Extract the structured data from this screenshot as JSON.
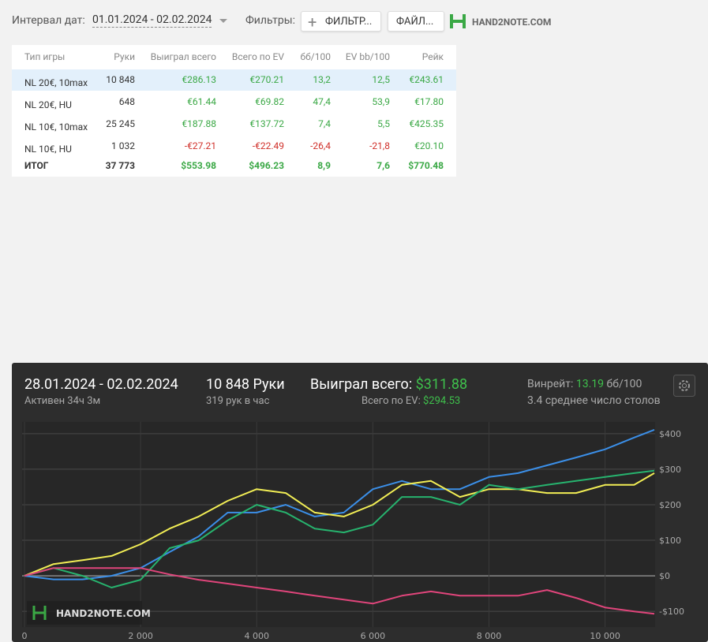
{
  "toolbar": {
    "date_label": "Интервал дат:",
    "date_range": "01.01.2024 - 02.02.2024",
    "filters_label": "Фильтры:",
    "filter_button": "ФИЛЬТР...",
    "file_button": "ФАЙЛ...",
    "logo": "HAND2NOTE.COM"
  },
  "table": {
    "headers": [
      "Тип игры",
      "Руки",
      "Выиграл всего",
      "Всего по EV",
      "бб/100",
      "EV bb/100",
      "Рейк"
    ],
    "rows": [
      [
        "NL 20€, 10max",
        "10 848",
        "€286.13",
        "€270.21",
        "13,2",
        "12,5",
        "€243.61"
      ],
      [
        "NL 20€, HU",
        "648",
        "€61.44",
        "€69.82",
        "47,4",
        "53,9",
        "€17.80"
      ],
      [
        "NL 10€, 10max",
        "25 245",
        "€187.88",
        "€137.72",
        "7,4",
        "5,5",
        "€425.35"
      ],
      [
        "NL 10€, HU",
        "1 032",
        "-€27.21",
        "-€22.49",
        "-26,4",
        "-21,8",
        "€20.10"
      ]
    ],
    "total": [
      "ИТОГ",
      "37 773",
      "$553.98",
      "$496.23",
      "8,9",
      "7,6",
      "$770.48"
    ]
  },
  "panel": {
    "date_range": "28.01.2024 - 02.02.2024",
    "active": "Активен 34ч 3м",
    "hands": "10 848 Руки",
    "hands_per_hour": "319 рук в час",
    "won_label": "Выиграл всего:",
    "won_value": "$311.88",
    "ev_label": "Всего по EV:",
    "ev_value": "$294.53",
    "winrate_label": "Винрейт:",
    "winrate_value": "13.19",
    "winrate_unit": "бб/100",
    "tables": "3.4 среднее число столов",
    "watermark": "HAND2NOTE.COM"
  },
  "chart_data": {
    "type": "line",
    "x": [
      0,
      500,
      1000,
      1500,
      2000,
      2500,
      3000,
      3500,
      4000,
      4500,
      5000,
      5500,
      6000,
      6500,
      7000,
      7500,
      8000,
      8500,
      9000,
      9500,
      10000,
      10500,
      10848
    ],
    "series": [
      {
        "color": "#3b8fe8",
        "values": [
          0,
          -10,
          -10,
          0,
          22,
          67,
          111,
          178,
          178,
          200,
          167,
          178,
          244,
          267,
          244,
          244,
          278,
          289,
          311,
          333,
          356,
          389,
          411
        ]
      },
      {
        "color": "#f2ee55",
        "values": [
          0,
          33,
          44,
          56,
          89,
          133,
          167,
          211,
          244,
          233,
          178,
          167,
          200,
          256,
          267,
          222,
          244,
          244,
          233,
          233,
          256,
          256,
          289
        ]
      },
      {
        "color": "#27b36e",
        "values": [
          0,
          22,
          0,
          -33,
          -11,
          78,
          100,
          156,
          200,
          178,
          133,
          122,
          144,
          222,
          222,
          200,
          256,
          244,
          256,
          267,
          278,
          289,
          296
        ]
      },
      {
        "color": "#e0457b",
        "values": [
          0,
          22,
          22,
          22,
          22,
          4,
          -11,
          -22,
          -33,
          -44,
          -56,
          -67,
          -78,
          -56,
          -44,
          -56,
          -56,
          -56,
          -40,
          -62,
          -89,
          -100,
          -107
        ]
      }
    ],
    "xlim": [
      0,
      10848
    ],
    "ylim": [
      -144,
      433
    ],
    "xticks": [
      0,
      {
        "value": 2000,
        "label": "2 000"
      },
      {
        "value": 4000,
        "label": "4 000"
      },
      {
        "value": 6000,
        "label": "6 000"
      },
      {
        "value": 8000,
        "label": "8 000"
      },
      {
        "value": 10000,
        "label": "10 000"
      }
    ],
    "yticks": [
      {
        "value": -100,
        "label": "-$100"
      },
      {
        "value": 0,
        "label": "$0"
      },
      {
        "value": 100,
        "label": "$100"
      },
      {
        "value": 200,
        "label": "$200"
      },
      {
        "value": 300,
        "label": "$300"
      },
      {
        "value": 400,
        "label": "$400"
      }
    ],
    "grid": true
  }
}
